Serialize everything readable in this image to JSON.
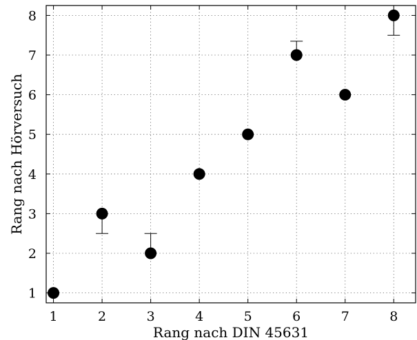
{
  "chart_data": {
    "type": "scatter",
    "xlabel": "Rang nach DIN 45631",
    "ylabel": "Rang nach Hörversuch",
    "xlim": [
      0.85,
      8.45
    ],
    "ylim": [
      0.75,
      8.25
    ],
    "x_ticks": [
      1,
      2,
      3,
      4,
      5,
      6,
      7,
      8
    ],
    "y_ticks": [
      1,
      2,
      3,
      4,
      5,
      6,
      7,
      8
    ],
    "grid": true,
    "marker_color": "#000000",
    "points": [
      {
        "x": 1,
        "y": 1
      },
      {
        "x": 2,
        "y": 3,
        "error_low": 2.5
      },
      {
        "x": 3,
        "y": 2,
        "error_high": 2.5
      },
      {
        "x": 4,
        "y": 4
      },
      {
        "x": 5,
        "y": 5
      },
      {
        "x": 6,
        "y": 7,
        "error_high": 7.35
      },
      {
        "x": 7,
        "y": 6
      },
      {
        "x": 8,
        "y": 8,
        "error_low": 7.5
      }
    ]
  }
}
